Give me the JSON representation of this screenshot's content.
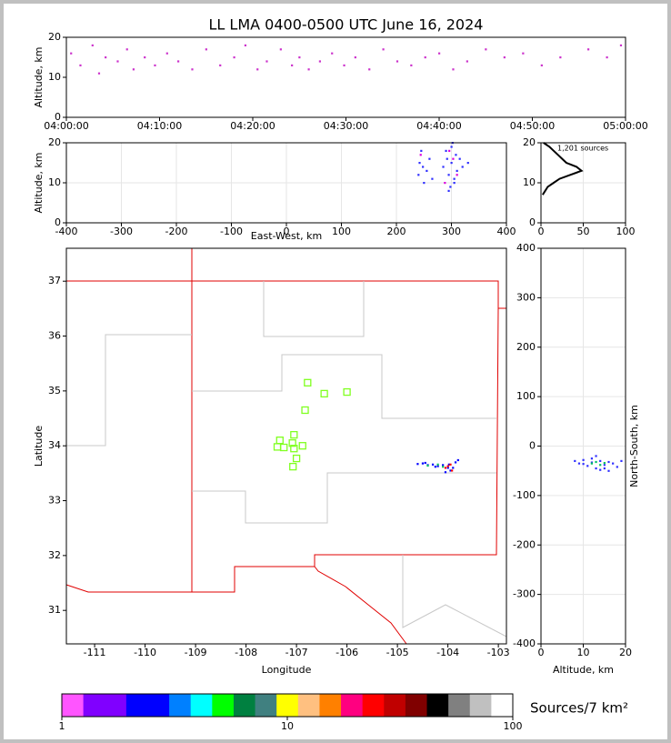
{
  "chart_data": [
    {
      "type": "scatter",
      "title": "LL LMA 0400-0500 UTC June 16, 2024",
      "ylabel": "Altitude, km",
      "xlim": [
        0,
        60
      ],
      "ylim": [
        0,
        20
      ],
      "xticks": [
        {
          "value": 0,
          "label": "04:00:00"
        },
        {
          "value": 10,
          "label": "04:10:00"
        },
        {
          "value": 20,
          "label": "04:20:00"
        },
        {
          "value": 30,
          "label": "04:30:00"
        },
        {
          "value": 40,
          "label": "04:40:00"
        },
        {
          "value": 50,
          "label": "04:50:00"
        },
        {
          "value": 60,
          "label": "05:00:00"
        }
      ],
      "yticks": [
        0,
        10,
        20
      ],
      "grid": false,
      "series": [
        {
          "color": "#cc33cc",
          "x": [
            0.5,
            1.5,
            2.8,
            3.5,
            4.2,
            5.5,
            6.5,
            7.2,
            8.4,
            9.5,
            10.8,
            12,
            13.5,
            15,
            16.5,
            18,
            19.2,
            20.5,
            21.5,
            23,
            24.2,
            25,
            26,
            27.2,
            28.5,
            29.8,
            31,
            32.5,
            34,
            35.5,
            37,
            38.5,
            40,
            41.5,
            43,
            45,
            47,
            49,
            51,
            53,
            56,
            58,
            59.5
          ],
          "values": [
            16,
            13,
            18,
            11,
            15,
            14,
            17,
            12,
            15,
            13,
            16,
            14,
            12,
            17,
            13,
            15,
            18,
            12,
            14,
            17,
            13,
            15,
            12,
            14,
            16,
            13,
            15,
            12,
            17,
            14,
            13,
            15,
            16,
            12,
            14,
            17,
            15,
            16,
            13,
            15,
            17,
            15,
            18
          ]
        }
      ]
    },
    {
      "type": "scatter",
      "xlabel": "East-West, km",
      "ylabel": "Altitude, km",
      "xlim": [
        -400,
        400
      ],
      "ylim": [
        0,
        20
      ],
      "xticks": [
        -400,
        -300,
        -200,
        -100,
        0,
        100,
        200,
        300,
        400
      ],
      "yticks": [
        0,
        10,
        20
      ],
      "grid": true,
      "series": [
        {
          "color": "#3030ff",
          "x": [
            240,
            242,
            245,
            250,
            255,
            260,
            265,
            285,
            290,
            295,
            298,
            300,
            302,
            305,
            308,
            310,
            315,
            320,
            330,
            295,
            300,
            248,
            305,
            292
          ],
          "values": [
            12,
            15,
            18,
            10,
            13,
            16,
            11,
            14,
            18,
            12,
            9,
            15,
            20,
            11,
            17,
            13,
            16,
            14,
            15,
            8,
            19,
            14,
            10,
            16
          ]
        },
        {
          "color": "#dd00dd",
          "x": [
            244,
            296,
            303,
            310,
            288
          ],
          "values": [
            17,
            18,
            16,
            12,
            10
          ]
        }
      ]
    },
    {
      "type": "line",
      "annotation": "1,201 sources",
      "xlim": [
        0,
        100
      ],
      "ylim": [
        0,
        20
      ],
      "xticks": [
        0,
        50,
        100
      ],
      "yticks": [
        0,
        10,
        20
      ],
      "grid": true,
      "x": [
        2,
        5,
        8,
        15,
        22,
        35,
        48,
        42,
        30,
        25,
        20,
        15,
        10,
        3
      ],
      "series": [
        {
          "color": "#000000",
          "values": [
            7,
            8,
            9,
            10,
            11,
            12,
            13,
            14,
            15,
            16,
            17,
            18,
            19,
            20
          ]
        }
      ]
    },
    {
      "type": "map",
      "xlabel": "Longitude",
      "ylabel": "Latitude",
      "xlim": [
        -111.56,
        -102.84
      ],
      "ylim": [
        30.39,
        37.6
      ],
      "xticks": [
        -111,
        -110,
        -109,
        -108,
        -107,
        -106,
        -105,
        -104,
        -103
      ],
      "yticks": [
        31,
        32,
        33,
        34,
        35,
        36,
        37
      ],
      "grid": false,
      "series": [
        {
          "color": "#0000ff",
          "x": [
            -104.6,
            -104.5,
            -104.4,
            -104.3,
            -104.2,
            -104.1,
            -104.0,
            -103.95,
            -103.9,
            -103.85,
            -103.8,
            -104.05,
            -103.98,
            -104.25,
            -104.45
          ],
          "values": [
            33.67,
            33.68,
            33.65,
            33.66,
            33.63,
            33.65,
            33.6,
            33.55,
            33.6,
            33.7,
            33.74,
            33.52,
            33.66,
            33.62,
            33.69
          ]
        },
        {
          "color": "#ff0000",
          "x": [
            -104.0,
            -104.05,
            -103.95,
            -103.92
          ],
          "values": [
            33.63,
            33.6,
            33.66,
            33.55
          ]
        },
        {
          "color": "#00c060",
          "x": [
            -104.4,
            -104.2,
            -104.1
          ],
          "values": [
            33.64,
            33.66,
            33.62
          ]
        }
      ],
      "stations": {
        "color": "#80ff20",
        "x": [
          -106.78,
          -106.45,
          -106.0,
          -106.83,
          -107.05,
          -107.08,
          -107.33,
          -107.38,
          -107.25,
          -107.05,
          -106.88,
          -107.0,
          -107.07
        ],
        "values": [
          35.15,
          34.95,
          34.98,
          34.65,
          34.2,
          34.05,
          34.1,
          33.98,
          33.97,
          33.95,
          34.0,
          33.77,
          33.62
        ]
      }
    },
    {
      "type": "scatter",
      "xlabel": "Altitude, km",
      "ylabel": "North-South, km",
      "xlim": [
        0,
        20
      ],
      "ylim": [
        -400,
        400
      ],
      "xticks": [
        0,
        10,
        20
      ],
      "yticks": [
        -400,
        -300,
        -200,
        -100,
        0,
        100,
        200,
        300,
        400
      ],
      "grid": true,
      "series": [
        {
          "color": "#3030ff",
          "x": [
            8,
            9,
            10,
            11,
            12,
            13,
            14,
            15,
            16,
            17,
            18,
            19,
            12,
            14,
            16,
            10,
            13,
            15
          ],
          "values": [
            -30,
            -35,
            -28,
            -40,
            -33,
            -45,
            -30,
            -38,
            -50,
            -35,
            -42,
            -30,
            -25,
            -48,
            -32,
            -36,
            -20,
            -45
          ]
        },
        {
          "color": "#00c060",
          "x": [
            12,
            13,
            14,
            15
          ],
          "values": [
            -35,
            -32,
            -38,
            -34
          ]
        }
      ]
    },
    {
      "type": "colorbar",
      "label": "Sources/7 km²",
      "xlim": [
        1,
        100
      ],
      "log": true,
      "xticks": [
        1,
        10,
        100
      ],
      "colors": [
        "#ff55ff",
        "#8000ff",
        "#8000ff",
        "#0000ff",
        "#0000ff",
        "#0080ff",
        "#00ffff",
        "#00ff00",
        "#008040",
        "#408080",
        "#ffff00",
        "#ffc080",
        "#ff8000",
        "#ff0080",
        "#ff0000",
        "#c00000",
        "#800000",
        "#000000",
        "#808080",
        "#c0c0c0",
        "#ffffff"
      ]
    }
  ]
}
